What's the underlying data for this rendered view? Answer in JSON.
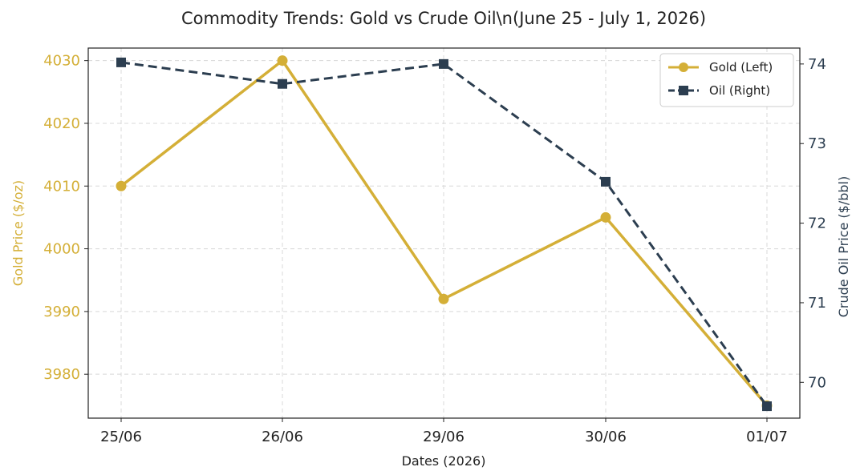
{
  "chart_data": {
    "type": "line",
    "title": "Commodity Trends: Gold vs Crude Oil\\n(June 25 - July 1, 2026)",
    "xlabel": "Dates (2026)",
    "categories": [
      "25/06",
      "26/06",
      "29/06",
      "30/06",
      "01/07"
    ],
    "y_left": {
      "label": "Gold Price ($/oz)",
      "ticks": [
        3980,
        3990,
        4000,
        4010,
        4020,
        4030
      ],
      "range": [
        3973,
        4032
      ],
      "color": "#D4AF37"
    },
    "y_right": {
      "label": "Crude Oil Price ($/bbl)",
      "ticks": [
        70,
        71,
        72,
        73,
        74
      ],
      "range": [
        69.55,
        74.2
      ],
      "color": "#2C3E50"
    },
    "series": [
      {
        "name": "Gold (Left)",
        "axis": "left",
        "style": "solid",
        "marker": "circle",
        "color": "#D4AF37",
        "values": [
          4010,
          4030,
          3992,
          4005,
          3975
        ]
      },
      {
        "name": "Oil (Right)",
        "axis": "right",
        "style": "dashed",
        "marker": "square",
        "color": "#2C3E50",
        "values": [
          74.02,
          73.75,
          74.0,
          72.52,
          69.7
        ]
      }
    ],
    "grid": true,
    "legend_position": "top-right"
  }
}
